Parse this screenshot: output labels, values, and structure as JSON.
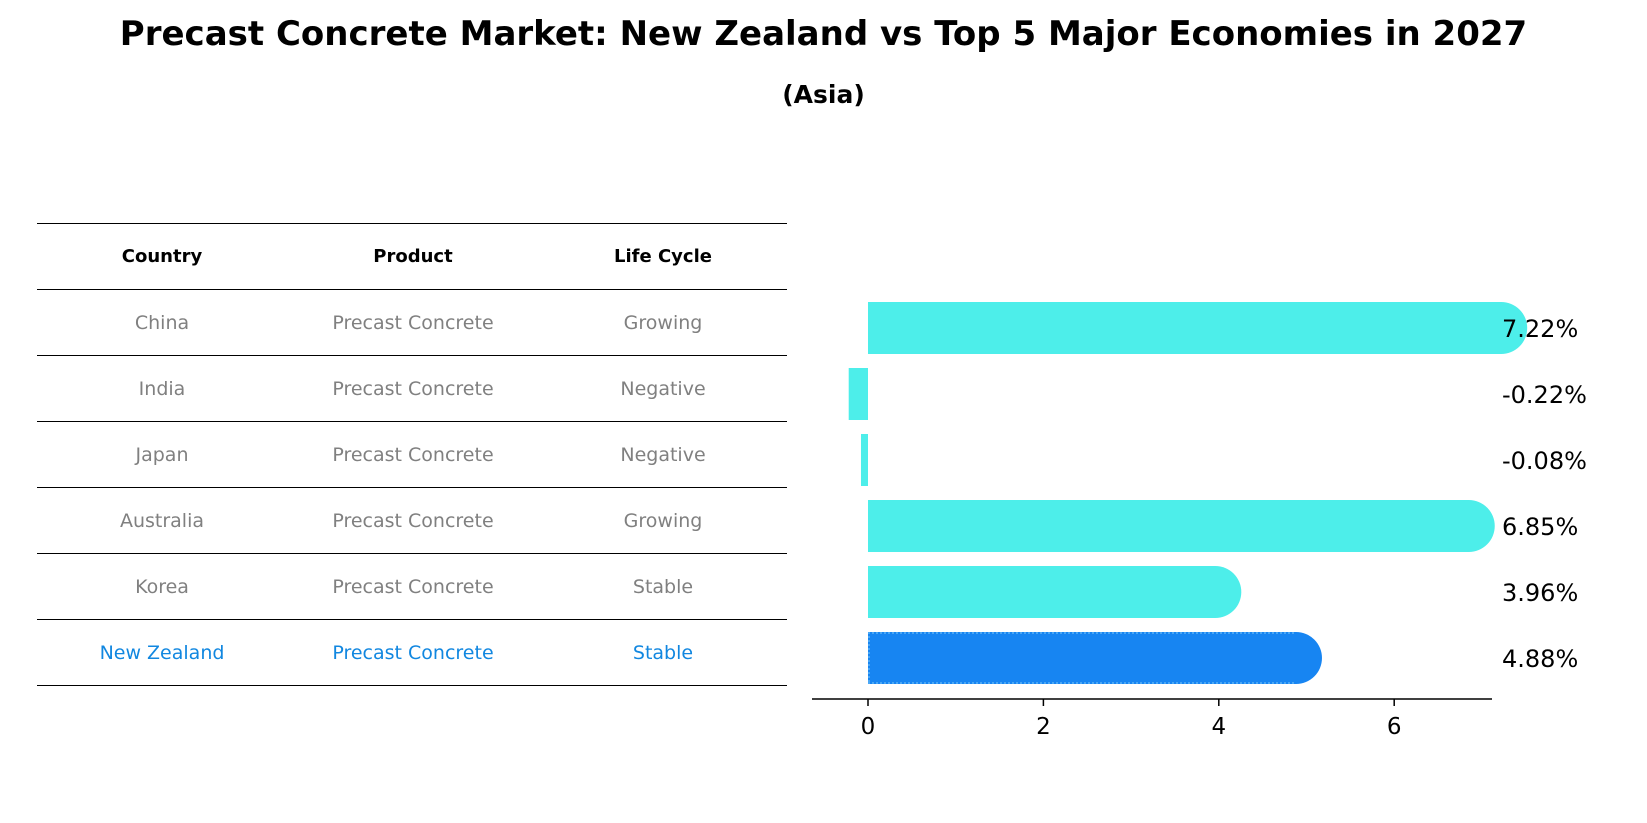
{
  "title": "Precast Concrete Market: New Zealand vs Top 5 Major Economies in 2027",
  "subtitle": "(Asia)",
  "table": {
    "headers": [
      "Country",
      "Product",
      "Life Cycle"
    ],
    "rows": [
      [
        "China",
        "Precast Concrete",
        "Growing"
      ],
      [
        "India",
        "Precast Concrete",
        "Negative"
      ],
      [
        "Japan",
        "Precast Concrete",
        "Negative"
      ],
      [
        "Australia",
        "Precast Concrete",
        "Growing"
      ],
      [
        "Korea",
        "Precast Concrete",
        "Stable"
      ],
      [
        "New Zealand",
        "Precast Concrete",
        "Stable"
      ]
    ],
    "highlight_color": "#1187e0"
  },
  "chart_data": {
    "type": "bar",
    "orientation": "horizontal",
    "categories": [
      "China",
      "India",
      "Japan",
      "Australia",
      "Korea",
      "New Zealand"
    ],
    "values": [
      7.22,
      -0.22,
      -0.08,
      6.85,
      3.96,
      4.88
    ],
    "value_labels": [
      "7.22%",
      "-0.22%",
      "-0.08%",
      "6.85%",
      "3.96%",
      "4.88%"
    ],
    "xticks": [
      0,
      2,
      4,
      6
    ],
    "xlim": [
      -0.6,
      7.6
    ],
    "colors": [
      "#4deeea",
      "#4deeea",
      "#4deeea",
      "#4deeea",
      "#4deeea",
      "#1785f2"
    ],
    "highlight_index": 5,
    "title": "",
    "xlabel": "",
    "ylabel": ""
  }
}
